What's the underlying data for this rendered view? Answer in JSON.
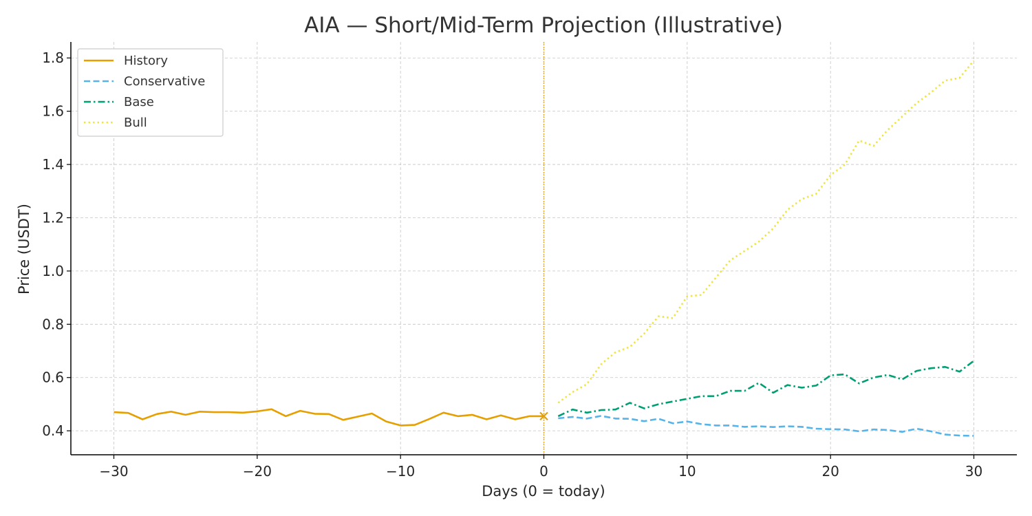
{
  "chart_data": {
    "type": "line",
    "title": "AIA — Short/Mid-Term Projection (Illustrative)",
    "xlabel": "Days (0 = today)",
    "ylabel": "Price (USDT)",
    "xlim": [
      -33,
      33
    ],
    "ylim": [
      0.31,
      1.86
    ],
    "xticks": [
      -30,
      -20,
      -10,
      0,
      10,
      20,
      30
    ],
    "xtick_labels": [
      "−30",
      "−20",
      "−10",
      "0",
      "10",
      "20",
      "30"
    ],
    "yticks": [
      0.4,
      0.6,
      0.8,
      1.0,
      1.2,
      1.4,
      1.6,
      1.8
    ],
    "ytick_labels": [
      "0.4",
      "0.6",
      "0.8",
      "1.0",
      "1.2",
      "1.4",
      "1.6",
      "1.8"
    ],
    "grid": true,
    "legend_position": "top-left",
    "today_marker": {
      "x": 0,
      "y": 0.455,
      "color": "#E69F00"
    },
    "series": [
      {
        "name": "History",
        "color": "#E69F00",
        "style": "solid",
        "x": [
          -30,
          -29,
          -28,
          -27,
          -26,
          -25,
          -24,
          -23,
          -22,
          -21,
          -20,
          -19,
          -18,
          -17,
          -16,
          -15,
          -14,
          -13,
          -12,
          -11,
          -10,
          -9,
          -8,
          -7,
          -6,
          -5,
          -4,
          -3,
          -2,
          -1,
          0
        ],
        "y": [
          0.47,
          0.467,
          0.443,
          0.463,
          0.472,
          0.46,
          0.472,
          0.47,
          0.47,
          0.468,
          0.473,
          0.481,
          0.455,
          0.475,
          0.464,
          0.463,
          0.441,
          0.453,
          0.465,
          0.435,
          0.42,
          0.422,
          0.444,
          0.468,
          0.455,
          0.46,
          0.443,
          0.458,
          0.443,
          0.455,
          0.455
        ]
      },
      {
        "name": "Conservative",
        "color": "#56B4E9",
        "style": "dashed",
        "x": [
          1,
          2,
          3,
          4,
          5,
          6,
          7,
          8,
          9,
          10,
          11,
          12,
          13,
          14,
          15,
          16,
          17,
          18,
          19,
          20,
          21,
          22,
          23,
          24,
          25,
          26,
          27,
          28,
          29,
          30
        ],
        "y": [
          0.447,
          0.452,
          0.446,
          0.456,
          0.446,
          0.445,
          0.436,
          0.445,
          0.428,
          0.435,
          0.425,
          0.42,
          0.42,
          0.415,
          0.417,
          0.414,
          0.417,
          0.415,
          0.408,
          0.406,
          0.405,
          0.398,
          0.405,
          0.403,
          0.396,
          0.408,
          0.398,
          0.386,
          0.382,
          0.381
        ]
      },
      {
        "name": "Base",
        "color": "#009E73",
        "style": "dashdot",
        "x": [
          1,
          2,
          3,
          4,
          5,
          6,
          7,
          8,
          9,
          10,
          11,
          12,
          13,
          14,
          15,
          16,
          17,
          18,
          19,
          20,
          21,
          22,
          23,
          24,
          25,
          26,
          27,
          28,
          29,
          30
        ],
        "y": [
          0.455,
          0.48,
          0.468,
          0.478,
          0.48,
          0.505,
          0.484,
          0.5,
          0.51,
          0.52,
          0.53,
          0.53,
          0.55,
          0.55,
          0.58,
          0.543,
          0.572,
          0.562,
          0.57,
          0.608,
          0.612,
          0.578,
          0.6,
          0.61,
          0.593,
          0.625,
          0.635,
          0.64,
          0.622,
          0.663
        ]
      },
      {
        "name": "Bull",
        "color": "#F0E442",
        "style": "dotted",
        "x": [
          1,
          2,
          3,
          4,
          5,
          6,
          7,
          8,
          9,
          10,
          11,
          12,
          13,
          14,
          15,
          16,
          17,
          18,
          19,
          20,
          21,
          22,
          23,
          24,
          25,
          26,
          27,
          28,
          29,
          30
        ],
        "y": [
          0.505,
          0.545,
          0.575,
          0.65,
          0.695,
          0.715,
          0.765,
          0.83,
          0.823,
          0.905,
          0.91,
          0.975,
          1.04,
          1.075,
          1.11,
          1.16,
          1.23,
          1.27,
          1.29,
          1.36,
          1.4,
          1.49,
          1.47,
          1.53,
          1.58,
          1.63,
          1.67,
          1.715,
          1.725,
          1.79
        ]
      }
    ]
  }
}
